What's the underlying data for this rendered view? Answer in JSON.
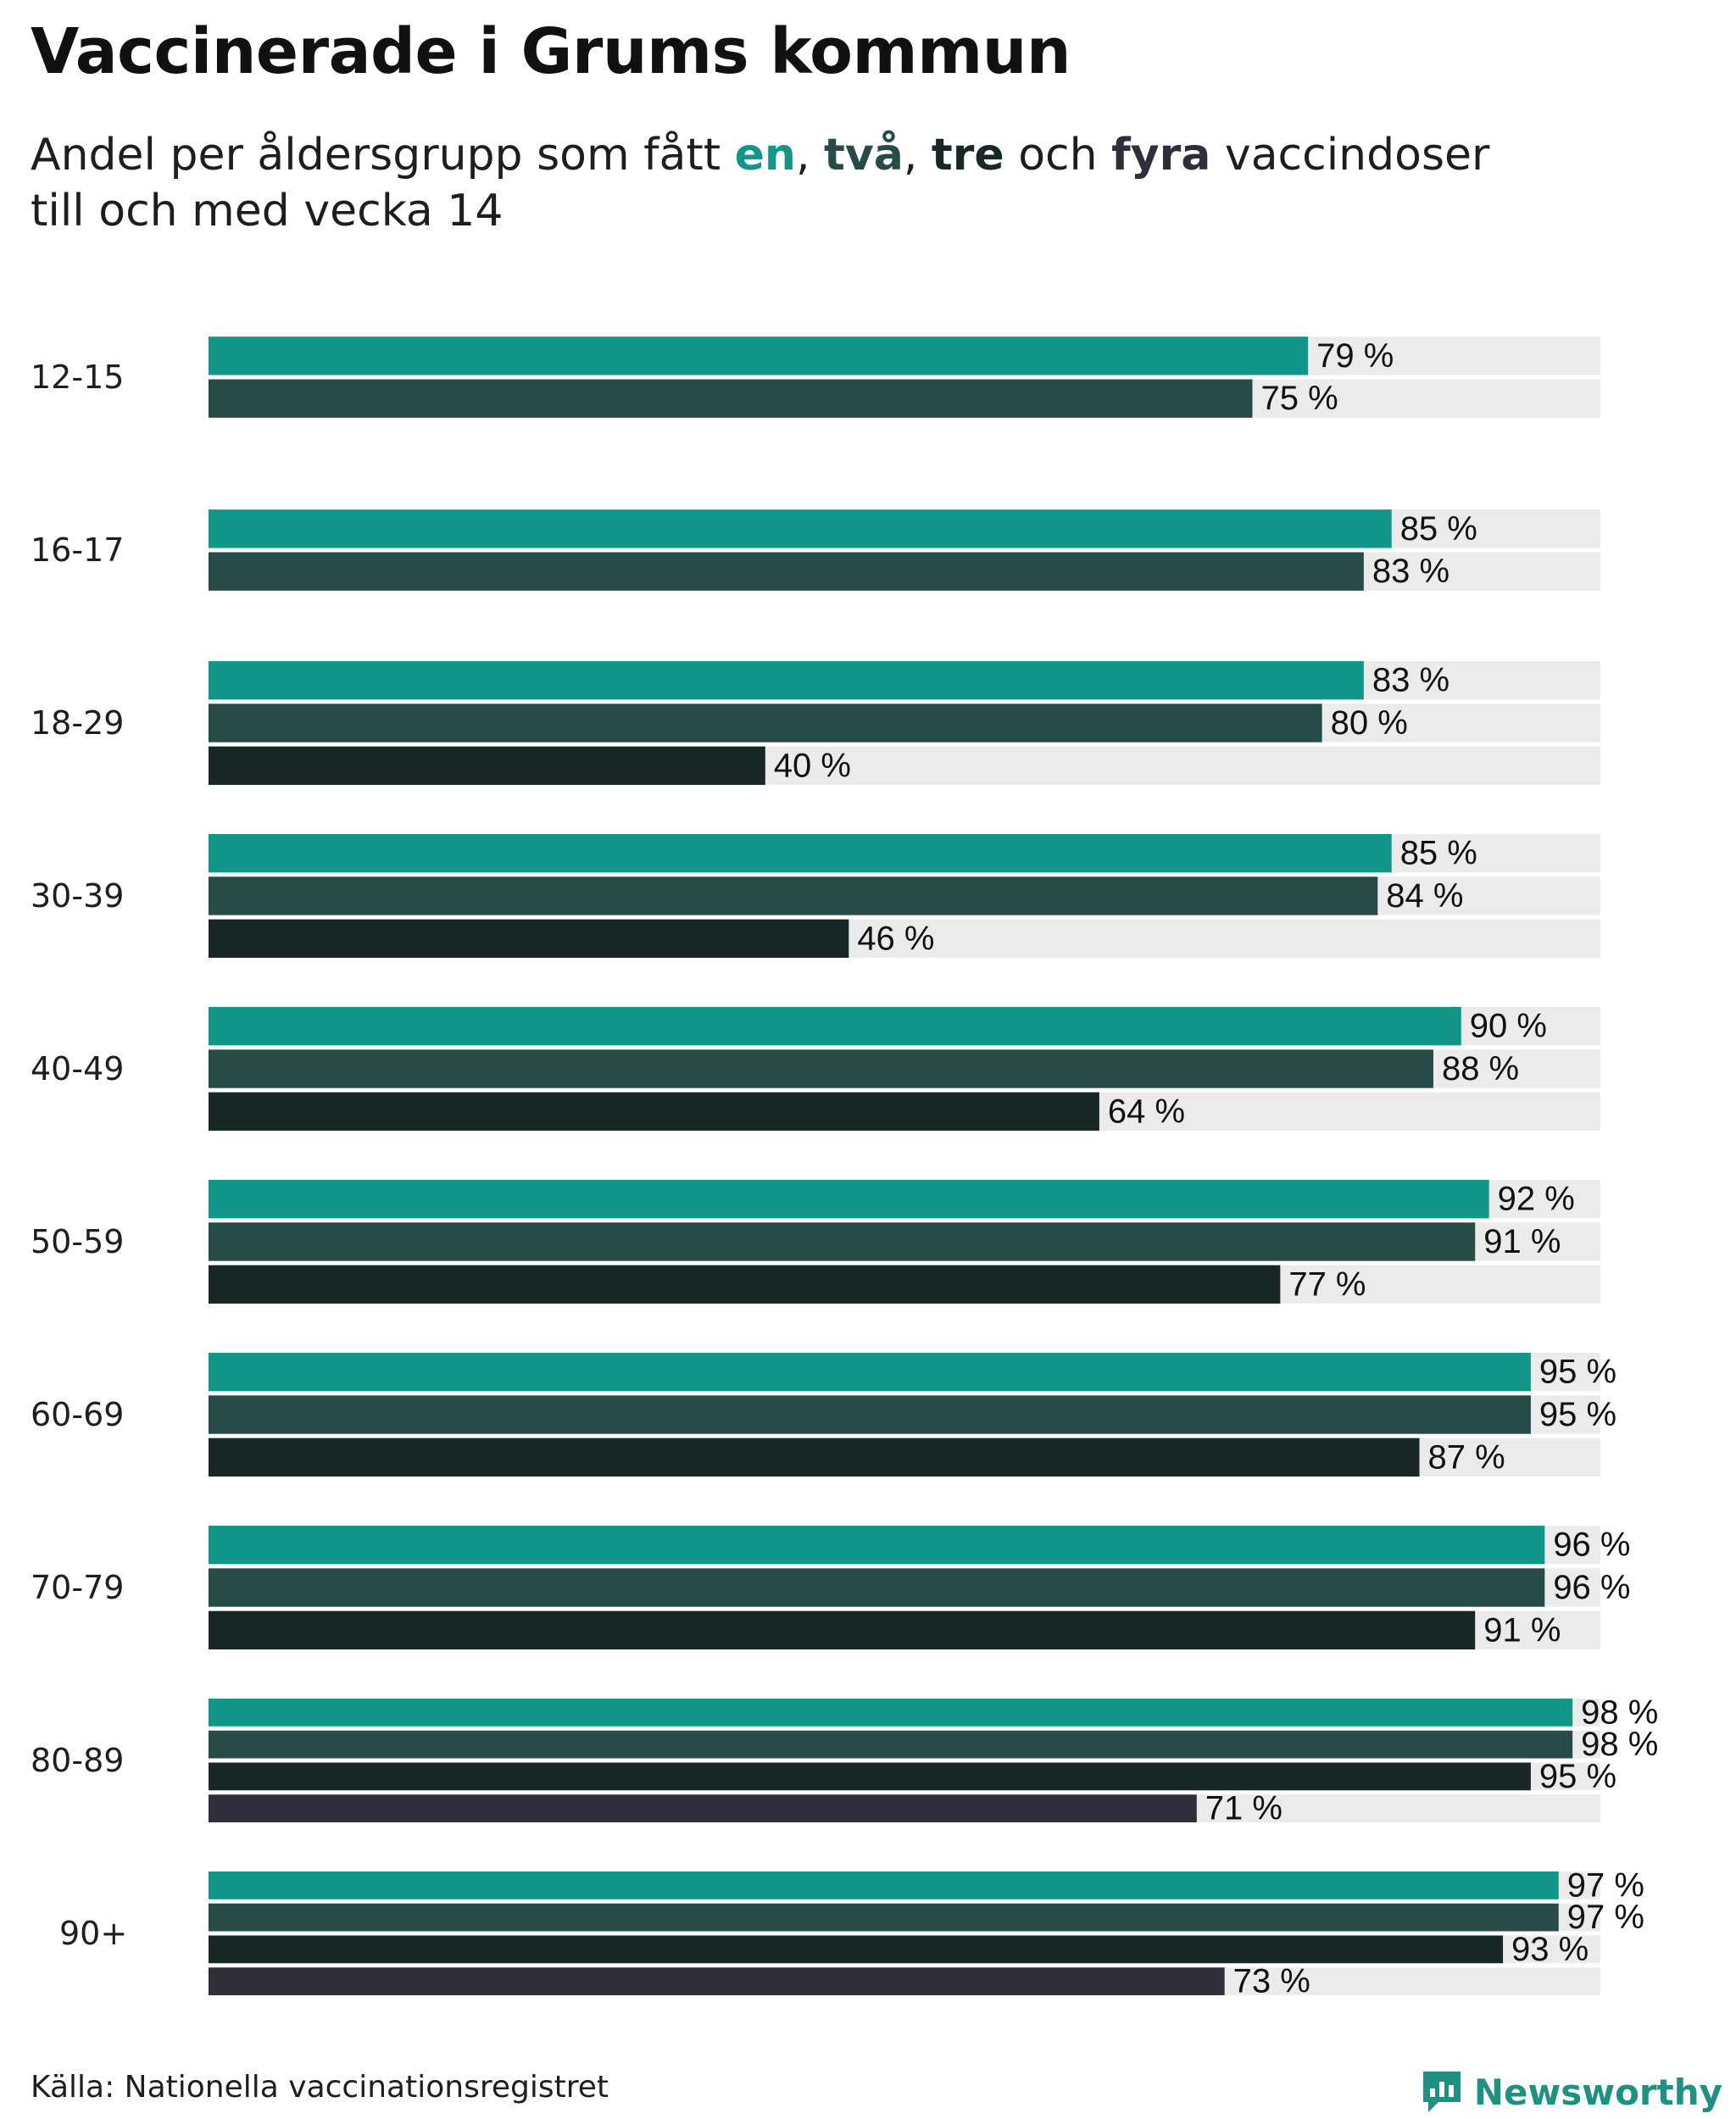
{
  "title": "Vaccinerade i Grums kommun",
  "subtitle": {
    "prefix": "Andel per åldersgrupp som fått ",
    "dose1": "en",
    "sep1": ", ",
    "dose2": "två",
    "sep2": ", ",
    "dose3": "tre",
    "mid": " och ",
    "dose4": "fyra",
    "suffix": " vaccindoser",
    "line2": "till och med vecka 14"
  },
  "source": "Källa: Nationella vaccinationsregistret",
  "brand": "Newsworthy",
  "colors": {
    "dose1": "#12968a",
    "dose2": "#264b48",
    "dose3": "#172826",
    "dose4": "#2f2e3b",
    "track": "#ebebeb",
    "brand": "#1e9182"
  },
  "chart_data": {
    "type": "bar",
    "orientation": "horizontal",
    "value_format": "{v} %",
    "xlim": [
      0,
      100
    ],
    "series": [
      {
        "name": "en"
      },
      {
        "name": "två"
      },
      {
        "name": "tre"
      },
      {
        "name": "fyra"
      }
    ],
    "groups": [
      {
        "label": "12-15",
        "values": [
          79,
          75
        ]
      },
      {
        "label": "16-17",
        "values": [
          85,
          83
        ]
      },
      {
        "label": "18-29",
        "values": [
          83,
          80,
          40
        ]
      },
      {
        "label": "30-39",
        "values": [
          85,
          84,
          46
        ]
      },
      {
        "label": "40-49",
        "values": [
          90,
          88,
          64
        ]
      },
      {
        "label": "50-59",
        "values": [
          92,
          91,
          77
        ]
      },
      {
        "label": "60-69",
        "values": [
          95,
          95,
          87
        ]
      },
      {
        "label": "70-79",
        "values": [
          96,
          96,
          91
        ]
      },
      {
        "label": "80-89",
        "values": [
          98,
          98,
          95,
          71
        ]
      },
      {
        "label": "90+",
        "values": [
          97,
          97,
          93,
          73
        ]
      }
    ]
  }
}
